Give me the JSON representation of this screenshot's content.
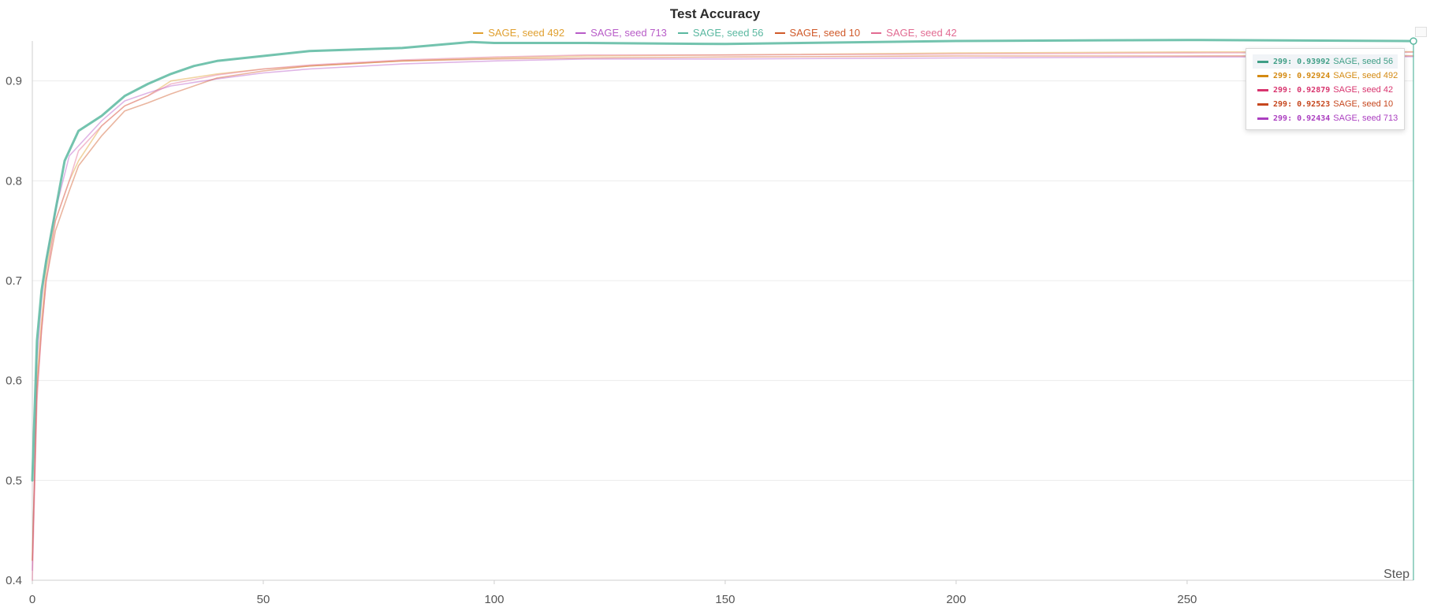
{
  "chart_data": {
    "type": "line",
    "title": "Test Accuracy",
    "xlabel": "Step",
    "ylabel": "",
    "xlim": [
      0,
      299
    ],
    "ylim": [
      0.4,
      0.94
    ],
    "x_ticks": [
      0,
      50,
      100,
      150,
      200,
      250
    ],
    "y_ticks": [
      0.4,
      0.5,
      0.6,
      0.7,
      0.8,
      0.9
    ],
    "grid": true,
    "legend_position": "top-center",
    "series": [
      {
        "name": "SAGE, seed 492",
        "color": "#e0a030",
        "final_value": 0.92924,
        "x": [
          0,
          1,
          2,
          3,
          5,
          8,
          10,
          15,
          20,
          25,
          30,
          40,
          50,
          60,
          80,
          100,
          120,
          150,
          200,
          250,
          299
        ],
        "y": [
          0.42,
          0.6,
          0.66,
          0.71,
          0.76,
          0.8,
          0.82,
          0.855,
          0.875,
          0.885,
          0.9,
          0.907,
          0.912,
          0.915,
          0.92,
          0.923,
          0.925,
          0.926,
          0.928,
          0.929,
          0.92924
        ]
      },
      {
        "name": "SAGE, seed 713",
        "color": "#b85cc8",
        "final_value": 0.92434,
        "x": [
          0,
          1,
          2,
          3,
          5,
          8,
          10,
          15,
          20,
          25,
          30,
          40,
          50,
          60,
          80,
          100,
          120,
          150,
          200,
          250,
          299
        ],
        "y": [
          0.41,
          0.62,
          0.68,
          0.72,
          0.77,
          0.825,
          0.835,
          0.86,
          0.88,
          0.888,
          0.895,
          0.902,
          0.908,
          0.912,
          0.917,
          0.92,
          0.922,
          0.922,
          0.923,
          0.924,
          0.92434
        ]
      },
      {
        "name": "SAGE, seed 56",
        "color": "#5ab8a0",
        "final_value": 0.93992,
        "x": [
          0,
          1,
          2,
          3,
          5,
          7,
          10,
          15,
          20,
          25,
          30,
          35,
          40,
          50,
          60,
          80,
          95,
          100,
          120,
          150,
          200,
          250,
          299
        ],
        "y": [
          0.5,
          0.64,
          0.69,
          0.72,
          0.77,
          0.82,
          0.85,
          0.865,
          0.885,
          0.897,
          0.907,
          0.915,
          0.92,
          0.925,
          0.93,
          0.933,
          0.939,
          0.938,
          0.938,
          0.937,
          0.94,
          0.941,
          0.93992
        ]
      },
      {
        "name": "SAGE, seed 10",
        "color": "#d05a2a",
        "final_value": 0.92523,
        "x": [
          0,
          1,
          2,
          3,
          5,
          8,
          10,
          15,
          20,
          25,
          30,
          40,
          50,
          60,
          80,
          100,
          120,
          150,
          200,
          250,
          299
        ],
        "y": [
          0.42,
          0.59,
          0.65,
          0.7,
          0.75,
          0.79,
          0.815,
          0.845,
          0.87,
          0.878,
          0.887,
          0.903,
          0.91,
          0.915,
          0.92,
          0.922,
          0.923,
          0.924,
          0.925,
          0.925,
          0.92523
        ]
      },
      {
        "name": "SAGE, seed 42",
        "color": "#e26b92",
        "final_value": 0.92879,
        "x": [
          0,
          1,
          2,
          3,
          5,
          8,
          10,
          15,
          20,
          25,
          30,
          40,
          50,
          60,
          80,
          100,
          120,
          150,
          200,
          250,
          299
        ],
        "y": [
          0.4,
          0.58,
          0.65,
          0.7,
          0.76,
          0.8,
          0.83,
          0.855,
          0.875,
          0.885,
          0.897,
          0.906,
          0.912,
          0.916,
          0.921,
          0.924,
          0.926,
          0.926,
          0.927,
          0.928,
          0.92879
        ]
      }
    ],
    "hover": {
      "step": 299,
      "rows": [
        {
          "series_index": 2,
          "label": "299",
          "value": "0.93992",
          "name": "SAGE, seed 56",
          "color": "#3f9e86",
          "active": true
        },
        {
          "series_index": 0,
          "label": "299",
          "value": "0.92924",
          "name": "SAGE, seed 492",
          "color": "#d48a12",
          "active": false
        },
        {
          "series_index": 4,
          "label": "299",
          "value": "0.92879",
          "name": "SAGE, seed 42",
          "color": "#d8346e",
          "active": false
        },
        {
          "series_index": 3,
          "label": "299",
          "value": "0.92523",
          "name": "SAGE, seed 10",
          "color": "#c6471e",
          "active": false
        },
        {
          "series_index": 1,
          "label": "299",
          "value": "0.92434",
          "name": "SAGE, seed 713",
          "color": "#ab3fc0",
          "active": false
        }
      ]
    }
  }
}
